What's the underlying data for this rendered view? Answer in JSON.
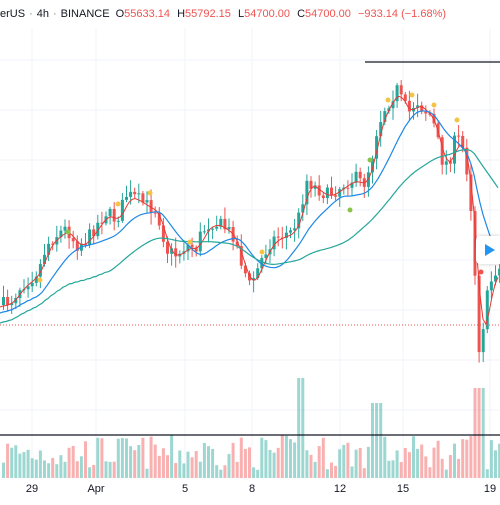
{
  "header": {
    "symbol": "erUS",
    "interval": "4h",
    "exchange": "BINANCE",
    "open_label": "O",
    "open": "55633.14",
    "high_label": "H",
    "high": "55792.15",
    "low_label": "L",
    "low": "54700.00",
    "close_label": "C",
    "close": "54700.00",
    "change": "−933.14 (−1.68%)"
  },
  "time_axis": [
    "29",
    "Apr",
    "5",
    "8",
    "12",
    "15",
    "19"
  ],
  "colors": {
    "up": "#26a69a",
    "down": "#ef5350",
    "ma_fast": "#e53935",
    "ma_mid": "#1e88e5",
    "ma_slow": "#26a69a",
    "marker_yellow": "#f6c445",
    "marker_green": "#8bc34a"
  },
  "icons": {
    "play": "play-triangle-icon"
  },
  "chart_data": {
    "type": "candlestick",
    "price_range_approx": [
      52800,
      61800
    ],
    "notes_visible": "Candlestick price chart with three moving averages, volume bars at bottom, dotted horizontal reference line, solid horizontal line near top and bottom of volume area."
  }
}
